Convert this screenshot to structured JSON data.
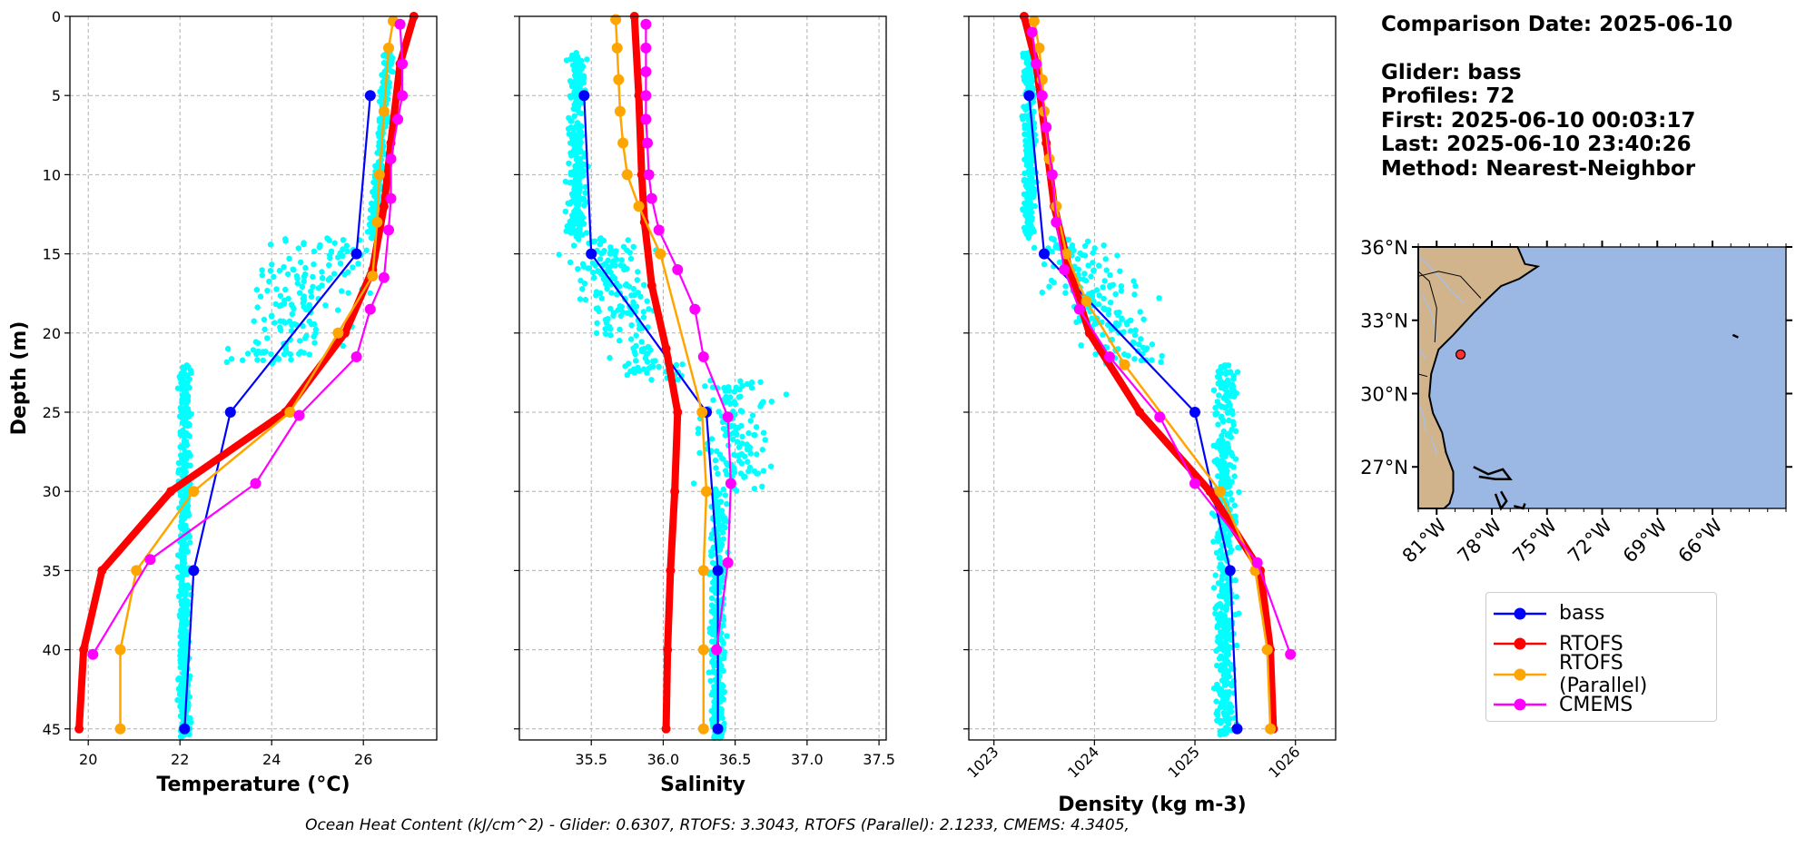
{
  "info": {
    "comparison_date": "Comparison Date: 2025-06-10",
    "glider": "Glider: bass",
    "profiles": "Profiles: 72",
    "first": "First: 2025-06-10 00:03:17",
    "last": "Last: 2025-06-10 23:40:26",
    "method": "Method: Nearest-Neighbor"
  },
  "footer": "Ocean Heat Content (kJ/cm^2) - Glider: 0.6307,  RTOFS: 3.3043,  RTOFS (Parallel): 2.1233,  CMEMS: 4.3405,",
  "colors": {
    "scatter": "#00ffff",
    "bass": "#0000ff",
    "rtofs": "#ff0000",
    "rtofs_parallel": "#ffa500",
    "cmems": "#ff00ff",
    "land": "#d2b48c",
    "ocean": "#9ab8e3"
  },
  "legend": [
    {
      "name": "bass",
      "color": "#0000ff"
    },
    {
      "name": "RTOFS",
      "color": "#ff0000"
    },
    {
      "name": "RTOFS (Parallel)",
      "color": "#ffa500"
    },
    {
      "name": "CMEMS",
      "color": "#ff00ff"
    }
  ],
  "chart_data": [
    {
      "type": "line",
      "xlabel": "Temperature (°C)",
      "ylabel": "Depth (m)",
      "xlim": [
        19.6,
        27.6
      ],
      "ylim": [
        45.7,
        0
      ],
      "xticks": [
        20,
        22,
        24,
        26
      ],
      "yticks": [
        0,
        5,
        10,
        15,
        20,
        25,
        30,
        35,
        40,
        45
      ],
      "grid": true,
      "series": [
        {
          "name": "bass",
          "x": [
            26.15,
            25.85,
            23.1,
            22.3,
            22.1
          ],
          "y": [
            5,
            15,
            25,
            35,
            45
          ]
        },
        {
          "name": "RTOFS",
          "x": [
            27.1,
            26.8,
            26.6,
            26.45,
            26.2,
            25.6,
            24.3,
            21.8,
            20.3,
            19.9,
            19.8
          ],
          "y": [
            0,
            3,
            8,
            12,
            16,
            20,
            25,
            30,
            35,
            40,
            45
          ]
        },
        {
          "name": "RTOFS (Parallel)",
          "x": [
            26.65,
            26.55,
            26.45,
            26.35,
            26.3,
            26.2,
            25.45,
            24.4,
            22.3,
            21.05,
            20.7,
            20.7
          ],
          "y": [
            0.3,
            2,
            6,
            10,
            13,
            16.4,
            20,
            25,
            30,
            35,
            40,
            45
          ]
        },
        {
          "name": "CMEMS",
          "x": [
            26.8,
            26.85,
            26.85,
            26.75,
            26.6,
            26.6,
            26.55,
            26.45,
            26.15,
            25.85,
            24.6,
            23.65,
            21.35,
            20.1
          ],
          "y": [
            0.5,
            3,
            5,
            6.5,
            9,
            11.5,
            13.5,
            16.5,
            18.5,
            21.5,
            25.2,
            29.5,
            34.3,
            40.3
          ]
        }
      ]
    },
    {
      "type": "line",
      "xlabel": "Salinity",
      "xlim": [
        35.0,
        37.55
      ],
      "ylim": [
        45.7,
        0
      ],
      "xticks": [
        35.5,
        36.0,
        36.5,
        37.0,
        37.5
      ],
      "xticklabels": [
        "35.5",
        "36.0",
        "36.5",
        "37.0",
        "37.5"
      ],
      "grid": true,
      "series": [
        {
          "name": "bass",
          "x": [
            35.45,
            35.5,
            36.3,
            36.38,
            36.38
          ],
          "y": [
            5,
            15,
            25,
            35,
            45
          ]
        },
        {
          "name": "RTOFS",
          "x": [
            35.8,
            35.83,
            35.85,
            35.87,
            35.92,
            36.02,
            36.1,
            36.08,
            36.05,
            36.03,
            36.02
          ],
          "y": [
            0,
            5,
            10,
            13,
            17,
            21,
            25,
            30,
            35,
            40,
            45
          ]
        },
        {
          "name": "RTOFS (Parallel)",
          "x": [
            35.67,
            35.68,
            35.69,
            35.7,
            35.72,
            35.75,
            35.83,
            35.98,
            36.27,
            36.3,
            36.28,
            36.28,
            36.28
          ],
          "y": [
            0.2,
            2,
            4,
            6,
            8,
            10,
            12,
            15,
            25,
            30,
            35,
            40,
            45
          ]
        },
        {
          "name": "CMEMS",
          "x": [
            35.88,
            35.88,
            35.88,
            35.88,
            35.88,
            35.89,
            35.9,
            35.92,
            35.97,
            36.1,
            36.22,
            36.28,
            36.45,
            36.47,
            36.45,
            36.37
          ],
          "y": [
            0.5,
            2,
            3.5,
            5,
            6.5,
            8,
            10,
            11.5,
            13.5,
            16,
            18.5,
            21.5,
            25.3,
            29.5,
            34.5,
            40
          ]
        }
      ]
    },
    {
      "type": "line",
      "xlabel": "Density (kg m-3)",
      "xlim": [
        1022.75,
        1026.4
      ],
      "ylim": [
        45.7,
        0
      ],
      "xticks": [
        1023,
        1024,
        1025,
        1026
      ],
      "grid": true,
      "series": [
        {
          "name": "bass",
          "x": [
            1023.35,
            1023.5,
            1025.0,
            1025.35,
            1025.42
          ],
          "y": [
            5,
            15,
            25,
            35,
            45
          ]
        },
        {
          "name": "RTOFS",
          "x": [
            1023.3,
            1023.42,
            1023.52,
            1023.6,
            1023.75,
            1023.95,
            1024.45,
            1025.15,
            1025.65,
            1025.75,
            1025.78
          ],
          "y": [
            0,
            3,
            8,
            12,
            16,
            20,
            25,
            30,
            35,
            40,
            45
          ]
        },
        {
          "name": "RTOFS (Parallel)",
          "x": [
            1023.4,
            1023.45,
            1023.48,
            1023.5,
            1023.55,
            1023.62,
            1023.72,
            1023.92,
            1024.3,
            1025.25,
            1025.6,
            1025.72,
            1025.75
          ],
          "y": [
            0.3,
            2,
            4,
            6,
            9,
            12,
            15,
            18,
            22,
            30,
            35,
            40,
            45
          ]
        },
        {
          "name": "CMEMS",
          "x": [
            1023.38,
            1023.42,
            1023.48,
            1023.52,
            1023.58,
            1023.62,
            1023.7,
            1023.85,
            1024.15,
            1024.65,
            1025.0,
            1025.62,
            1025.95
          ],
          "y": [
            1,
            3,
            5,
            7,
            10,
            13,
            16,
            18.5,
            21.5,
            25.3,
            29.5,
            34.5,
            40.3
          ]
        }
      ]
    }
  ],
  "map": {
    "lon_range": [
      -82.0,
      -62.0
    ],
    "lat_range": [
      25.3,
      36.0
    ],
    "xticks": [
      "81°W",
      "78°W",
      "75°W",
      "72°W",
      "69°W",
      "66°W"
    ],
    "xtick_lons": [
      -81,
      -78,
      -75,
      -72,
      -69,
      -66
    ],
    "yticks": [
      "36°N",
      "33°N",
      "30°N",
      "27°N"
    ],
    "ytick_lats": [
      36,
      33,
      30,
      27
    ],
    "marker": {
      "lon": -79.7,
      "lat": 31.6
    }
  }
}
